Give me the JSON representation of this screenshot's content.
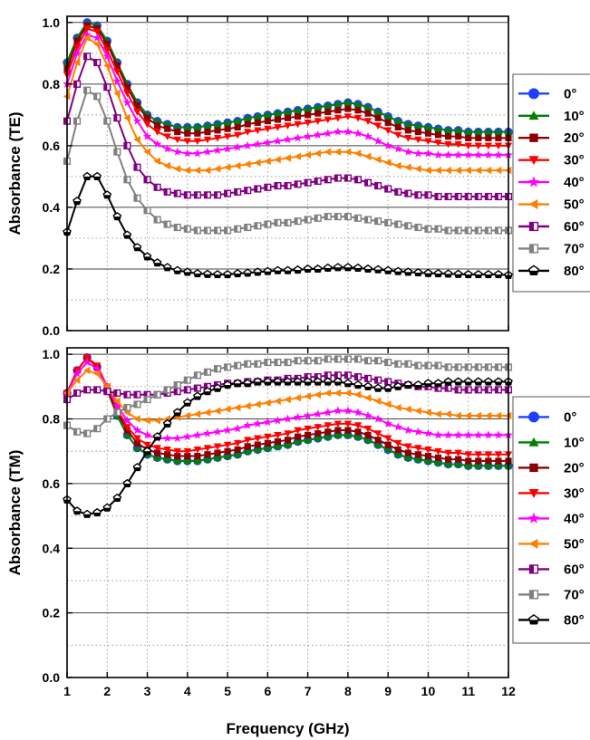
{
  "chart_data": [
    {
      "type": "line",
      "panel": "top",
      "ylabel": "Absorbance (TE)",
      "xlabel": "",
      "xlim": [
        1,
        12
      ],
      "ylim": [
        0.0,
        1.02
      ],
      "xticks": [
        "1",
        "2",
        "3",
        "4",
        "5",
        "6",
        "7",
        "8",
        "9",
        "10",
        "11",
        "12"
      ],
      "yticks": [
        "0.0",
        "0.2",
        "0.4",
        "0.6",
        "0.8",
        "1.0"
      ],
      "grid": "dotted",
      "legend_position": "right",
      "x": [
        1.0,
        1.25,
        1.5,
        1.75,
        2.0,
        2.25,
        2.5,
        2.75,
        3.0,
        3.25,
        3.5,
        3.75,
        4.0,
        4.25,
        4.5,
        4.75,
        5.0,
        5.25,
        5.5,
        5.75,
        6.0,
        6.25,
        6.5,
        6.75,
        7.0,
        7.25,
        7.5,
        7.75,
        8.0,
        8.25,
        8.5,
        8.75,
        9.0,
        9.25,
        9.5,
        9.75,
        10.0,
        10.25,
        10.5,
        10.75,
        11.0,
        11.25,
        11.5,
        11.75,
        12.0
      ],
      "series": [
        {
          "name": "0°",
          "color": "#1f3fff",
          "marker": "circle",
          "values": [
            0.87,
            0.95,
            1.0,
            0.99,
            0.94,
            0.87,
            0.8,
            0.74,
            0.7,
            0.68,
            0.67,
            0.66,
            0.66,
            0.66,
            0.665,
            0.67,
            0.675,
            0.68,
            0.69,
            0.695,
            0.7,
            0.705,
            0.71,
            0.715,
            0.72,
            0.725,
            0.73,
            0.735,
            0.74,
            0.735,
            0.725,
            0.71,
            0.695,
            0.68,
            0.67,
            0.665,
            0.66,
            0.655,
            0.65,
            0.65,
            0.645,
            0.645,
            0.645,
            0.645,
            0.645
          ]
        },
        {
          "name": "10°",
          "color": "#008000",
          "marker": "triangle-up",
          "values": [
            0.87,
            0.95,
            1.0,
            0.99,
            0.94,
            0.87,
            0.8,
            0.74,
            0.7,
            0.68,
            0.67,
            0.66,
            0.66,
            0.66,
            0.665,
            0.67,
            0.675,
            0.68,
            0.69,
            0.695,
            0.7,
            0.705,
            0.71,
            0.715,
            0.72,
            0.725,
            0.73,
            0.735,
            0.74,
            0.735,
            0.725,
            0.71,
            0.695,
            0.68,
            0.67,
            0.665,
            0.66,
            0.655,
            0.65,
            0.65,
            0.645,
            0.645,
            0.645,
            0.645,
            0.645
          ]
        },
        {
          "name": "20°",
          "color": "#8b0000",
          "marker": "square",
          "values": [
            0.85,
            0.94,
            0.99,
            0.98,
            0.93,
            0.86,
            0.79,
            0.73,
            0.69,
            0.665,
            0.655,
            0.645,
            0.64,
            0.64,
            0.645,
            0.65,
            0.655,
            0.66,
            0.67,
            0.675,
            0.68,
            0.685,
            0.69,
            0.695,
            0.7,
            0.705,
            0.71,
            0.715,
            0.72,
            0.715,
            0.705,
            0.69,
            0.675,
            0.66,
            0.65,
            0.645,
            0.64,
            0.635,
            0.63,
            0.63,
            0.625,
            0.625,
            0.625,
            0.625,
            0.625
          ]
        },
        {
          "name": "30°",
          "color": "#ff0000",
          "marker": "triangle-down",
          "values": [
            0.83,
            0.92,
            0.98,
            0.97,
            0.91,
            0.84,
            0.77,
            0.71,
            0.67,
            0.645,
            0.63,
            0.62,
            0.615,
            0.615,
            0.62,
            0.625,
            0.63,
            0.635,
            0.645,
            0.65,
            0.655,
            0.66,
            0.665,
            0.67,
            0.675,
            0.68,
            0.685,
            0.69,
            0.695,
            0.69,
            0.68,
            0.665,
            0.65,
            0.635,
            0.625,
            0.62,
            0.615,
            0.61,
            0.605,
            0.605,
            0.6,
            0.6,
            0.6,
            0.6,
            0.6
          ]
        },
        {
          "name": "40°",
          "color": "#ff00ff",
          "marker": "star",
          "values": [
            0.8,
            0.9,
            0.96,
            0.95,
            0.89,
            0.81,
            0.74,
            0.68,
            0.63,
            0.605,
            0.59,
            0.58,
            0.575,
            0.575,
            0.58,
            0.585,
            0.59,
            0.595,
            0.6,
            0.605,
            0.61,
            0.615,
            0.62,
            0.625,
            0.63,
            0.635,
            0.64,
            0.645,
            0.645,
            0.64,
            0.63,
            0.615,
            0.6,
            0.59,
            0.58,
            0.575,
            0.575,
            0.57,
            0.57,
            0.57,
            0.57,
            0.57,
            0.57,
            0.57,
            0.57
          ]
        },
        {
          "name": "50°",
          "color": "#ff8000",
          "marker": "triangle-left",
          "values": [
            0.76,
            0.87,
            0.95,
            0.93,
            0.86,
            0.77,
            0.69,
            0.62,
            0.58,
            0.55,
            0.535,
            0.525,
            0.52,
            0.52,
            0.52,
            0.525,
            0.53,
            0.535,
            0.54,
            0.545,
            0.55,
            0.555,
            0.56,
            0.565,
            0.57,
            0.575,
            0.58,
            0.58,
            0.58,
            0.575,
            0.565,
            0.555,
            0.545,
            0.535,
            0.53,
            0.525,
            0.52,
            0.52,
            0.52,
            0.52,
            0.52,
            0.52,
            0.52,
            0.52,
            0.52
          ]
        },
        {
          "name": "60°",
          "color": "#800080",
          "marker": "square-half",
          "values": [
            0.68,
            0.8,
            0.89,
            0.87,
            0.79,
            0.69,
            0.6,
            0.53,
            0.49,
            0.465,
            0.45,
            0.445,
            0.44,
            0.44,
            0.44,
            0.44,
            0.445,
            0.45,
            0.455,
            0.46,
            0.465,
            0.47,
            0.47,
            0.475,
            0.48,
            0.485,
            0.49,
            0.495,
            0.495,
            0.49,
            0.48,
            0.47,
            0.46,
            0.45,
            0.445,
            0.44,
            0.44,
            0.435,
            0.435,
            0.435,
            0.435,
            0.435,
            0.435,
            0.435,
            0.435
          ]
        },
        {
          "name": "70°",
          "color": "#808080",
          "marker": "square-half",
          "values": [
            0.55,
            0.68,
            0.78,
            0.76,
            0.68,
            0.58,
            0.49,
            0.43,
            0.39,
            0.36,
            0.345,
            0.335,
            0.33,
            0.325,
            0.325,
            0.325,
            0.325,
            0.33,
            0.335,
            0.34,
            0.345,
            0.35,
            0.35,
            0.355,
            0.36,
            0.365,
            0.37,
            0.37,
            0.37,
            0.365,
            0.36,
            0.355,
            0.35,
            0.345,
            0.34,
            0.335,
            0.33,
            0.33,
            0.325,
            0.325,
            0.325,
            0.325,
            0.325,
            0.325,
            0.325
          ]
        },
        {
          "name": "80°",
          "color": "#000000",
          "marker": "pentagon",
          "values": [
            0.32,
            0.42,
            0.5,
            0.5,
            0.44,
            0.37,
            0.31,
            0.27,
            0.24,
            0.22,
            0.205,
            0.195,
            0.19,
            0.185,
            0.183,
            0.182,
            0.182,
            0.185,
            0.187,
            0.19,
            0.192,
            0.195,
            0.195,
            0.197,
            0.2,
            0.2,
            0.203,
            0.205,
            0.205,
            0.203,
            0.2,
            0.198,
            0.195,
            0.192,
            0.19,
            0.188,
            0.186,
            0.185,
            0.184,
            0.183,
            0.182,
            0.182,
            0.182,
            0.182,
            0.18
          ]
        }
      ]
    },
    {
      "type": "line",
      "panel": "bottom",
      "ylabel": "Absorbance (TM)",
      "xlabel": "Frequency (GHz)",
      "xlim": [
        1,
        12
      ],
      "ylim": [
        0.0,
        1.02
      ],
      "xticks": [
        "1",
        "2",
        "3",
        "4",
        "5",
        "6",
        "7",
        "8",
        "9",
        "10",
        "11",
        "12"
      ],
      "yticks": [
        "0.0",
        "0.2",
        "0.4",
        "0.6",
        "0.8",
        "1.0"
      ],
      "grid": "dotted",
      "legend_position": "right",
      "x": [
        1.0,
        1.25,
        1.5,
        1.75,
        2.0,
        2.25,
        2.5,
        2.75,
        3.0,
        3.25,
        3.5,
        3.75,
        4.0,
        4.25,
        4.5,
        4.75,
        5.0,
        5.25,
        5.5,
        5.75,
        6.0,
        6.25,
        6.5,
        6.75,
        7.0,
        7.25,
        7.5,
        7.75,
        8.0,
        8.25,
        8.5,
        8.75,
        9.0,
        9.25,
        9.5,
        9.75,
        10.0,
        10.25,
        10.5,
        10.75,
        11.0,
        11.25,
        11.5,
        11.75,
        12.0
      ],
      "series": [
        {
          "name": "0°",
          "color": "#1f3fff",
          "marker": "circle",
          "values": [
            0.88,
            0.95,
            0.99,
            0.96,
            0.89,
            0.81,
            0.75,
            0.71,
            0.69,
            0.68,
            0.675,
            0.67,
            0.67,
            0.67,
            0.675,
            0.68,
            0.685,
            0.69,
            0.7,
            0.705,
            0.71,
            0.715,
            0.72,
            0.73,
            0.735,
            0.74,
            0.745,
            0.75,
            0.75,
            0.745,
            0.735,
            0.72,
            0.705,
            0.69,
            0.68,
            0.675,
            0.67,
            0.665,
            0.66,
            0.66,
            0.655,
            0.655,
            0.655,
            0.655,
            0.655
          ]
        },
        {
          "name": "10°",
          "color": "#008000",
          "marker": "triangle-up",
          "values": [
            0.88,
            0.95,
            0.99,
            0.96,
            0.89,
            0.81,
            0.75,
            0.71,
            0.69,
            0.68,
            0.675,
            0.67,
            0.67,
            0.67,
            0.675,
            0.68,
            0.685,
            0.69,
            0.7,
            0.705,
            0.71,
            0.715,
            0.72,
            0.73,
            0.735,
            0.74,
            0.745,
            0.75,
            0.75,
            0.745,
            0.735,
            0.72,
            0.705,
            0.69,
            0.68,
            0.675,
            0.67,
            0.665,
            0.66,
            0.66,
            0.655,
            0.655,
            0.655,
            0.655,
            0.655
          ]
        },
        {
          "name": "20°",
          "color": "#8b0000",
          "marker": "square",
          "values": [
            0.88,
            0.95,
            0.99,
            0.96,
            0.895,
            0.82,
            0.765,
            0.725,
            0.705,
            0.695,
            0.69,
            0.685,
            0.685,
            0.685,
            0.69,
            0.695,
            0.7,
            0.705,
            0.715,
            0.72,
            0.725,
            0.73,
            0.735,
            0.745,
            0.75,
            0.755,
            0.76,
            0.765,
            0.765,
            0.76,
            0.75,
            0.735,
            0.72,
            0.705,
            0.695,
            0.69,
            0.685,
            0.68,
            0.675,
            0.675,
            0.67,
            0.67,
            0.67,
            0.67,
            0.67
          ]
        },
        {
          "name": "30°",
          "color": "#ff0000",
          "marker": "triangle-down",
          "values": [
            0.88,
            0.95,
            0.99,
            0.965,
            0.9,
            0.83,
            0.775,
            0.74,
            0.72,
            0.71,
            0.705,
            0.7,
            0.7,
            0.705,
            0.71,
            0.715,
            0.72,
            0.725,
            0.735,
            0.74,
            0.745,
            0.75,
            0.755,
            0.765,
            0.77,
            0.775,
            0.78,
            0.785,
            0.785,
            0.78,
            0.77,
            0.755,
            0.74,
            0.725,
            0.715,
            0.71,
            0.705,
            0.7,
            0.695,
            0.695,
            0.69,
            0.69,
            0.69,
            0.69,
            0.69
          ]
        },
        {
          "name": "40°",
          "color": "#ff00ff",
          "marker": "star",
          "values": [
            0.88,
            0.94,
            0.975,
            0.955,
            0.9,
            0.84,
            0.795,
            0.765,
            0.75,
            0.74,
            0.74,
            0.74,
            0.745,
            0.75,
            0.755,
            0.76,
            0.765,
            0.77,
            0.78,
            0.785,
            0.79,
            0.795,
            0.8,
            0.805,
            0.81,
            0.815,
            0.82,
            0.825,
            0.825,
            0.82,
            0.81,
            0.8,
            0.785,
            0.775,
            0.765,
            0.76,
            0.755,
            0.75,
            0.75,
            0.75,
            0.75,
            0.75,
            0.75,
            0.75,
            0.75
          ]
        },
        {
          "name": "50°",
          "color": "#ff8000",
          "marker": "triangle-left",
          "values": [
            0.88,
            0.92,
            0.95,
            0.94,
            0.9,
            0.855,
            0.82,
            0.8,
            0.795,
            0.795,
            0.8,
            0.805,
            0.81,
            0.815,
            0.82,
            0.825,
            0.83,
            0.835,
            0.84,
            0.845,
            0.85,
            0.855,
            0.86,
            0.865,
            0.87,
            0.875,
            0.88,
            0.88,
            0.88,
            0.875,
            0.865,
            0.855,
            0.845,
            0.835,
            0.83,
            0.825,
            0.82,
            0.815,
            0.815,
            0.81,
            0.81,
            0.81,
            0.81,
            0.81,
            0.81
          ]
        },
        {
          "name": "60°",
          "color": "#800080",
          "marker": "square-half",
          "values": [
            0.86,
            0.88,
            0.89,
            0.89,
            0.885,
            0.88,
            0.875,
            0.875,
            0.875,
            0.875,
            0.88,
            0.885,
            0.89,
            0.895,
            0.9,
            0.905,
            0.91,
            0.91,
            0.915,
            0.915,
            0.92,
            0.92,
            0.925,
            0.925,
            0.93,
            0.93,
            0.935,
            0.935,
            0.935,
            0.93,
            0.925,
            0.92,
            0.915,
            0.91,
            0.905,
            0.9,
            0.9,
            0.895,
            0.895,
            0.89,
            0.89,
            0.89,
            0.89,
            0.89,
            0.89
          ]
        },
        {
          "name": "70°",
          "color": "#808080",
          "marker": "square-half",
          "values": [
            0.78,
            0.76,
            0.755,
            0.77,
            0.8,
            0.82,
            0.835,
            0.845,
            0.86,
            0.875,
            0.89,
            0.905,
            0.92,
            0.935,
            0.945,
            0.955,
            0.96,
            0.965,
            0.97,
            0.97,
            0.975,
            0.975,
            0.975,
            0.98,
            0.98,
            0.98,
            0.985,
            0.985,
            0.985,
            0.985,
            0.98,
            0.98,
            0.975,
            0.97,
            0.97,
            0.965,
            0.965,
            0.965,
            0.96,
            0.96,
            0.96,
            0.96,
            0.96,
            0.96,
            0.96
          ]
        },
        {
          "name": "80°",
          "color": "#000000",
          "marker": "pentagon",
          "values": [
            0.55,
            0.515,
            0.505,
            0.51,
            0.525,
            0.555,
            0.6,
            0.65,
            0.7,
            0.745,
            0.785,
            0.82,
            0.85,
            0.87,
            0.885,
            0.895,
            0.905,
            0.91,
            0.91,
            0.915,
            0.915,
            0.915,
            0.915,
            0.915,
            0.915,
            0.915,
            0.915,
            0.915,
            0.91,
            0.905,
            0.9,
            0.895,
            0.895,
            0.9,
            0.905,
            0.905,
            0.91,
            0.91,
            0.915,
            0.915,
            0.915,
            0.915,
            0.915,
            0.915,
            0.915
          ]
        }
      ]
    }
  ]
}
